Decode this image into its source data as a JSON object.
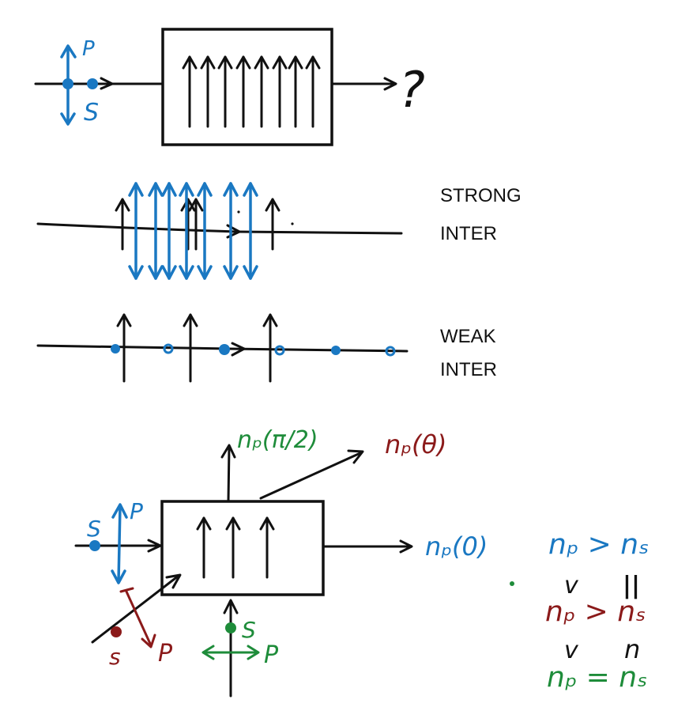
{
  "colors": {
    "black": "#111111",
    "blue": "#1a78c2",
    "red": "#8b1a1a",
    "green": "#1e8c3a"
  },
  "panel1": {
    "p_label": "P",
    "s_label": "S",
    "output_label": "?"
  },
  "panel2": {
    "label_line1": "STRONG",
    "label_line2": "INTER"
  },
  "panel3": {
    "label_line1": "WEAK",
    "label_line2": "INTER"
  },
  "panel4": {
    "top_output": "nₚ(π/2)",
    "diag_output": "nₚ(θ)",
    "right_output": "nₚ(0)",
    "left_s": "S",
    "left_p": "P",
    "diag_s": "s",
    "diag_p": "P",
    "bottom_s": "S",
    "bottom_p": "P"
  },
  "relations": {
    "row1": "nₚ > nₛ",
    "row2_left": "v",
    "row2_right": "||",
    "row3": "nₚ > nₛ",
    "row4_left": "v",
    "row4_right": "n",
    "row5": "nₚ = nₛ"
  }
}
